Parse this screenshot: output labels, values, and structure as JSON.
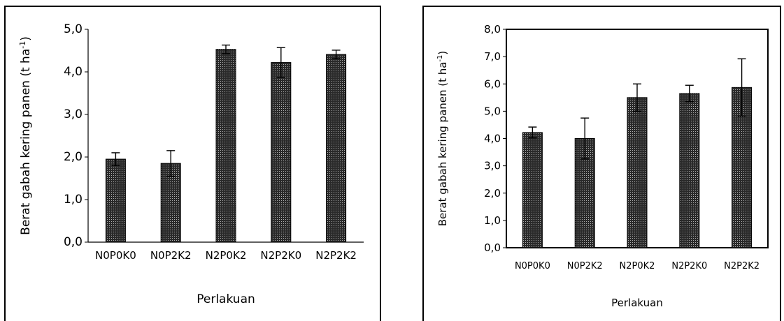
{
  "chart_data": [
    {
      "type": "bar",
      "categories": [
        "N0P0K0",
        "N0P2K2",
        "N2P0K2",
        "N2P2K0",
        "N2P2K2"
      ],
      "values": [
        1.95,
        1.85,
        4.53,
        4.22,
        4.41
      ],
      "errors": [
        0.15,
        0.3,
        0.1,
        0.35,
        0.1
      ],
      "ylim": [
        0,
        5
      ],
      "yticks": [
        "0,0",
        "1,0",
        "2,0",
        "3,0",
        "4,0",
        "5,0"
      ],
      "xlabel": "Perlakuan",
      "ylabel_main": "Berat gabah kering panen  (t ha",
      "ylabel_sup": "-1",
      "ylabel_end": ")",
      "grid": false
    },
    {
      "type": "bar",
      "categories": [
        "N0P0K0",
        "N0P2K2",
        "N2P0K2",
        "N2P2K0",
        "N2P2K2"
      ],
      "values": [
        4.22,
        4.0,
        5.5,
        5.65,
        5.87
      ],
      "errors": [
        0.2,
        0.75,
        0.5,
        0.3,
        1.05
      ],
      "ylim": [
        0,
        8
      ],
      "yticks": [
        "0,0",
        "1,0",
        "2,0",
        "3,0",
        "4,0",
        "5,0",
        "6,0",
        "7,0",
        "8,0"
      ],
      "xlabel": "Perlakuan",
      "ylabel_main": "Berat gabah kering panen  (t ha",
      "ylabel_sup": "-1",
      "ylabel_end": ")",
      "grid": false
    }
  ]
}
